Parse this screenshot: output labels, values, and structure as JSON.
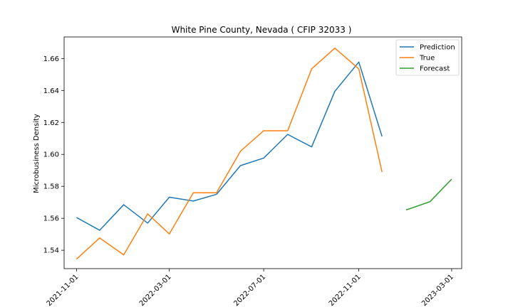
{
  "chart_data": {
    "type": "line",
    "title": "White Pine County, Nevada ( CFIP 32033 )",
    "xlabel": "",
    "ylabel": "Microbusiness Density",
    "xlim": [
      "2021-10-16",
      "2023-03-14"
    ],
    "ylim": [
      1.5285,
      1.6735
    ],
    "x_ticks": [
      "2021-11-01",
      "2022-03-01",
      "2022-07-01",
      "2022-11-01",
      "2023-03-01"
    ],
    "y_ticks": [
      1.54,
      1.56,
      1.58,
      1.6,
      1.62,
      1.64,
      1.66
    ],
    "grid": false,
    "legend": "top-right",
    "series": [
      {
        "name": "Prediction",
        "color": "#1f77b4",
        "x": [
          "2021-11-01",
          "2021-12-01",
          "2022-01-01",
          "2022-02-01",
          "2022-03-01",
          "2022-04-01",
          "2022-05-01",
          "2022-06-01",
          "2022-07-01",
          "2022-08-01",
          "2022-09-01",
          "2022-10-01",
          "2022-11-01",
          "2022-12-01"
        ],
        "y": [
          1.5605,
          1.5525,
          1.5685,
          1.557,
          1.5732,
          1.5708,
          1.575,
          1.593,
          1.5977,
          1.6125,
          1.6047,
          1.6395,
          1.6578,
          1.6112
        ]
      },
      {
        "name": "True",
        "color": "#ff7f0e",
        "x": [
          "2021-11-01",
          "2021-12-01",
          "2022-01-01",
          "2022-02-01",
          "2022-03-01",
          "2022-04-01",
          "2022-05-01",
          "2022-06-01",
          "2022-07-01",
          "2022-08-01",
          "2022-09-01",
          "2022-10-01",
          "2022-11-01",
          "2022-12-01"
        ],
        "y": [
          1.5345,
          1.5477,
          1.5371,
          1.5628,
          1.5502,
          1.576,
          1.576,
          1.602,
          1.6148,
          1.6148,
          1.6535,
          1.6665,
          1.6535,
          1.589
        ]
      },
      {
        "name": "Forecast",
        "color": "#2ca02c",
        "x": [
          "2023-01-01",
          "2023-02-01",
          "2023-03-01"
        ],
        "y": [
          1.5652,
          1.5704,
          1.5845
        ]
      }
    ]
  }
}
